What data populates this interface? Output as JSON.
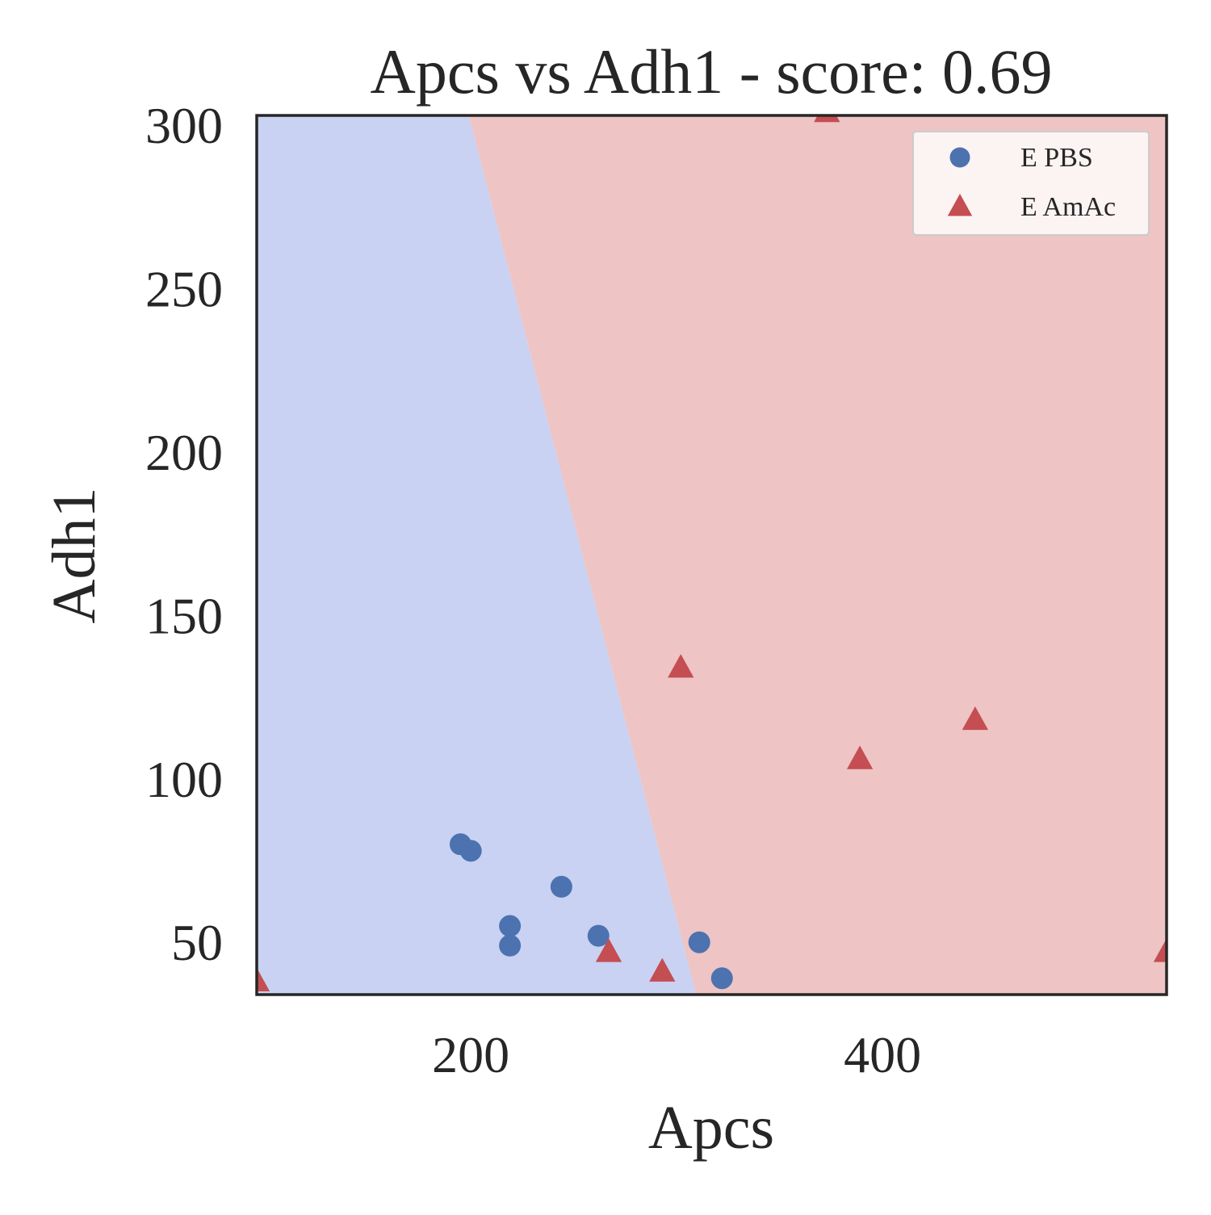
{
  "chart_data": {
    "type": "scatter",
    "title": "Apcs vs Adh1 - score: 0.69",
    "xlabel": "Apcs",
    "ylabel": "Adh1",
    "xlim": [
      96,
      538
    ],
    "ylim": [
      34,
      303
    ],
    "xticks": [
      200,
      400
    ],
    "xtick_labels": [
      "200",
      "400"
    ],
    "yticks": [
      50,
      100,
      150,
      200,
      250,
      300
    ],
    "ytick_labels": [
      "50",
      "100",
      "150",
      "200",
      "250",
      "300"
    ],
    "grid": false,
    "legend_position": "top-right",
    "decision_boundary": {
      "points": [
        [
          198.5,
          303
        ],
        [
          310,
          34
        ]
      ],
      "left_region": "E PBS",
      "right_region": "E AmAc",
      "left_color": "#c9d2f2",
      "right_color": "#eec4c4"
    },
    "series": [
      {
        "name": "E PBS",
        "marker": "circle",
        "color": "#4c72b0",
        "points": [
          [
            195,
            80
          ],
          [
            200,
            78
          ],
          [
            219,
            55
          ],
          [
            219,
            49
          ],
          [
            244,
            67
          ],
          [
            262,
            52
          ],
          [
            311,
            50
          ],
          [
            322,
            39
          ]
        ]
      },
      {
        "name": "E AmAc",
        "marker": "triangle",
        "color": "#c44e52",
        "points": [
          [
            96,
            38
          ],
          [
            267,
            47
          ],
          [
            293,
            41
          ],
          [
            302,
            134
          ],
          [
            373,
            304
          ],
          [
            389,
            106
          ],
          [
            445,
            118
          ],
          [
            538,
            47
          ]
        ]
      }
    ]
  }
}
